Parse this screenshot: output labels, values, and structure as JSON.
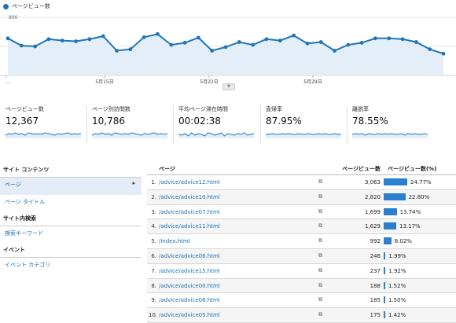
{
  "chart_data": {
    "type": "area",
    "series": [
      {
        "name": "ページビュー数",
        "values": [
          510,
          410,
          400,
          500,
          480,
          470,
          500,
          540,
          340,
          360,
          525,
          570,
          420,
          450,
          520,
          340,
          390,
          460,
          420,
          500,
          480,
          550,
          440,
          460,
          340,
          420,
          450,
          510,
          510,
          500,
          460,
          360,
          300
        ]
      }
    ],
    "y_ticks": [
      "800",
      "400"
    ],
    "x_ticks": [
      "…",
      "5月15日",
      "5月22日",
      "5月29日"
    ],
    "ylim": [
      0,
      800
    ],
    "grid": true
  },
  "legend": {
    "label": "ページビュー数",
    "color": "#1f74b8"
  },
  "metrics": [
    {
      "label": "ページビュー数",
      "value": "12,367",
      "spark": [
        4,
        6,
        5,
        7,
        5,
        6,
        4,
        7,
        6,
        5,
        6,
        5,
        7,
        6,
        5,
        4,
        6,
        5,
        6,
        7,
        5,
        6,
        5,
        6
      ]
    },
    {
      "label": "ページ別訪問数",
      "value": "10,786",
      "spark": [
        4,
        6,
        5,
        7,
        5,
        6,
        4,
        7,
        6,
        5,
        6,
        5,
        7,
        6,
        5,
        4,
        6,
        5,
        6,
        7,
        5,
        6,
        5,
        6
      ]
    },
    {
      "label": "平均ページ滞在時間",
      "value": "00:02:38",
      "spark": [
        5,
        4,
        6,
        3,
        7,
        4,
        6,
        5,
        3,
        7,
        6,
        4,
        5,
        7,
        3,
        6,
        5,
        4,
        6,
        5,
        7,
        4,
        5,
        6
      ]
    },
    {
      "label": "直帰率",
      "value": "87.95%",
      "spark": [
        5,
        5,
        6,
        5,
        5,
        6,
        5,
        6,
        5,
        5,
        6,
        5,
        5,
        6,
        5,
        5,
        6,
        5,
        6,
        5,
        5,
        6,
        5,
        5
      ]
    },
    {
      "label": "離脱率",
      "value": "78.55%",
      "spark": [
        5,
        6,
        5,
        6,
        4,
        6,
        5,
        5,
        6,
        5,
        6,
        5,
        6,
        5,
        5,
        6,
        4,
        6,
        5,
        6,
        5,
        5,
        6,
        5
      ]
    }
  ],
  "nav": {
    "section_content": "サイト コンテンツ",
    "item_page": "ページ",
    "item_page_title": "ページ タイトル",
    "section_search": "サイト内検索",
    "item_keyword": "検索キーワード",
    "section_event": "イベント",
    "item_event_category": "イベント カテゴリ"
  },
  "table": {
    "col_page": "ページ",
    "col_views": "ページビュー数",
    "col_pct": "ページビュー数(%)",
    "bar_color": "#2a7fcf",
    "rows": [
      {
        "num": "1.",
        "page": "/advice/advice12.html",
        "views": "3,063",
        "pct": "24.77%",
        "share": 24.77
      },
      {
        "num": "2.",
        "page": "/advice/advice10.html",
        "views": "2,820",
        "pct": "22.80%",
        "share": 22.8
      },
      {
        "num": "3.",
        "page": "/advice/advice07.html",
        "views": "1,699",
        "pct": "13.74%",
        "share": 13.74
      },
      {
        "num": "4.",
        "page": "/advice/advice11.html",
        "views": "1,629",
        "pct": "13.17%",
        "share": 13.17
      },
      {
        "num": "5.",
        "page": "/index.html",
        "views": "992",
        "pct": "8.02%",
        "share": 8.02
      },
      {
        "num": "6.",
        "page": "/advice/advice06.html",
        "views": "246",
        "pct": "1.99%",
        "share": 1.99
      },
      {
        "num": "7.",
        "page": "/advice/advice15.html",
        "views": "237",
        "pct": "1.92%",
        "share": 1.92
      },
      {
        "num": "8.",
        "page": "/advice/advice00.html",
        "views": "188",
        "pct": "1.52%",
        "share": 1.52
      },
      {
        "num": "9.",
        "page": "/advice/advice08.html",
        "views": "185",
        "pct": "1.50%",
        "share": 1.5
      },
      {
        "num": "10.",
        "page": "/advice/advice05.html",
        "views": "175",
        "pct": "1.42%",
        "share": 1.42
      }
    ]
  }
}
